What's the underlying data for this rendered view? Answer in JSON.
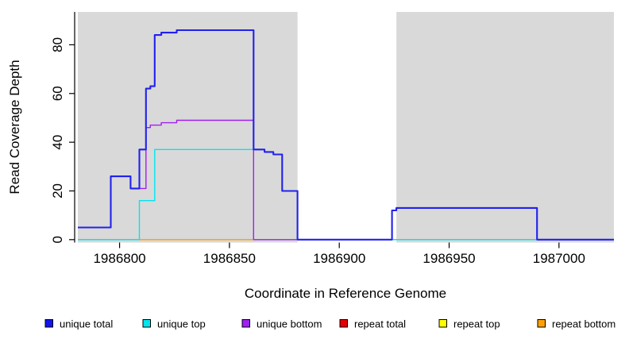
{
  "chart_data": {
    "type": "line",
    "subtype": "step-after",
    "title": "",
    "xlabel": "Coordinate in Reference Genome",
    "ylabel": "Read Coverage Depth",
    "xlim": [
      1986781,
      1987025
    ],
    "ylim": [
      -1.2,
      93.5
    ],
    "x_ticks": [
      1986800,
      1986850,
      1986900,
      1986950,
      1987000
    ],
    "y_ticks": [
      0,
      20,
      40,
      60,
      80
    ],
    "grid": false,
    "plot_background_color": "#d9d9d9",
    "white_gap_x": [
      1986881,
      1986926
    ],
    "axis_color": "#000000",
    "series": [
      {
        "name": "repeat-total",
        "label": "repeat total",
        "color": "#e60000",
        "line_width": 1.4,
        "points": [
          [
            1986781,
            0
          ]
        ]
      },
      {
        "name": "repeat-top",
        "label": "repeat top",
        "color": "#ffff00",
        "line_width": 1.4,
        "points": [
          [
            1986781,
            0
          ]
        ]
      },
      {
        "name": "repeat-bottom",
        "label": "repeat bottom",
        "color": "#ffa200",
        "line_width": 1.4,
        "points": [
          [
            1986781,
            0
          ]
        ]
      },
      {
        "name": "unique-top",
        "label": "unique top",
        "color": "#00e5ee",
        "line_width": 1.4,
        "points": [
          [
            1986781,
            0
          ],
          [
            1986809,
            16
          ],
          [
            1986816,
            37
          ],
          [
            1986866,
            36
          ],
          [
            1986870,
            35
          ],
          [
            1986874,
            20
          ],
          [
            1986881,
            0
          ]
        ]
      },
      {
        "name": "unique-bottom",
        "label": "unique bottom",
        "color": "#a020f0",
        "line_width": 1.4,
        "points": [
          [
            1986781,
            5
          ],
          [
            1986796,
            26
          ],
          [
            1986805,
            21
          ],
          [
            1986812,
            46
          ],
          [
            1986814,
            47
          ],
          [
            1986819,
            48
          ],
          [
            1986826,
            49
          ],
          [
            1986861,
            0
          ],
          [
            1986924,
            12
          ],
          [
            1986926,
            13
          ],
          [
            1986990,
            0
          ]
        ]
      },
      {
        "name": "unique-total",
        "label": "unique total",
        "color": "#2121ee",
        "line_width": 2.1,
        "points": [
          [
            1986781,
            5
          ],
          [
            1986796,
            26
          ],
          [
            1986805,
            21
          ],
          [
            1986809,
            37
          ],
          [
            1986812,
            62
          ],
          [
            1986814,
            63
          ],
          [
            1986816,
            84
          ],
          [
            1986819,
            85
          ],
          [
            1986826,
            86
          ],
          [
            1986861,
            37
          ],
          [
            1986866,
            36
          ],
          [
            1986870,
            35
          ],
          [
            1986874,
            20
          ],
          [
            1986881,
            0
          ],
          [
            1986924,
            12
          ],
          [
            1986926,
            13
          ],
          [
            1986990,
            0
          ]
        ]
      }
    ],
    "legend": {
      "position": "bottom",
      "items": [
        {
          "label": "unique total",
          "color": "#1414ee"
        },
        {
          "label": "unique top",
          "color": "#00e5ee"
        },
        {
          "label": "unique bottom",
          "color": "#a020f0"
        },
        {
          "label": "repeat total",
          "color": "#e60000"
        },
        {
          "label": "repeat top",
          "color": "#ffff00"
        },
        {
          "label": "repeat bottom",
          "color": "#ffa200"
        }
      ]
    }
  }
}
